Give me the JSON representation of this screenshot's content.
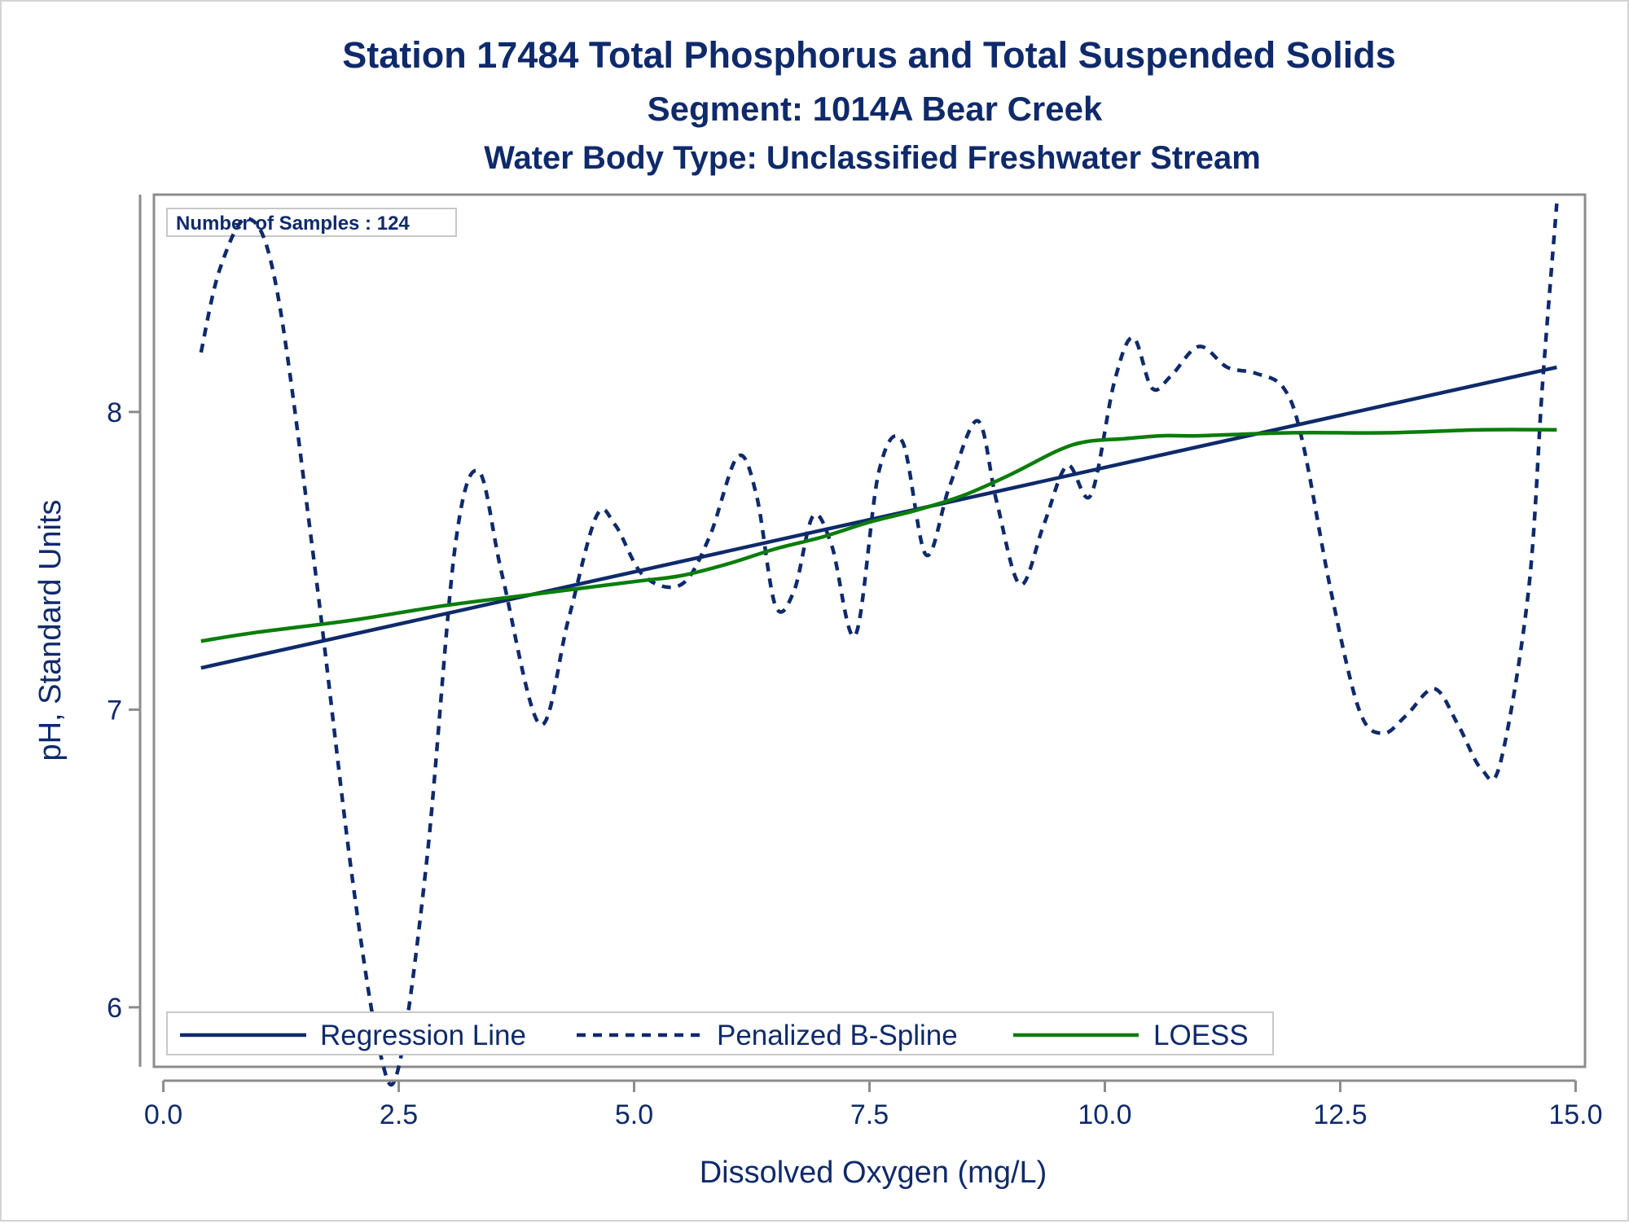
{
  "titles": {
    "line1": "Station 17484  Total Phosphorus and Total Suspended Solids",
    "line2": "Segment: 1014A  Bear Creek",
    "line3": "Water Body Type: Unclassified Freshwater Stream"
  },
  "inset": {
    "label": "Number of Samples : 124"
  },
  "colors": {
    "navy": "#0f2a6b",
    "green": "#0a7d0a",
    "frame": "#8c8c8c"
  },
  "chart_data": {
    "type": "line",
    "xlabel": "Dissolved Oxygen (mg/L)",
    "ylabel": "pH, Standard Units",
    "xlim": [
      -0.1,
      15.1
    ],
    "ylim": [
      5.8,
      8.73
    ],
    "xticks": [
      0.0,
      2.5,
      5.0,
      7.5,
      10.0,
      12.5,
      15.0
    ],
    "xtick_labels": [
      "0.0",
      "2.5",
      "5.0",
      "7.5",
      "10.0",
      "12.5",
      "15.0"
    ],
    "yticks": [
      6,
      7,
      8
    ],
    "ytick_labels": [
      "6",
      "7",
      "8"
    ],
    "grid": false,
    "legend_position": "bottom-left-inside",
    "series": [
      {
        "name": "Regression Line",
        "style": "solid",
        "color": "#0f2a6b",
        "x": [
          0.4,
          14.8
        ],
        "y": [
          7.14,
          8.15
        ]
      },
      {
        "name": "Penalized B-Spline",
        "style": "dashed",
        "color": "#0f2a6b",
        "x": [
          0.4,
          0.6,
          0.9,
          1.2,
          1.6,
          2.0,
          2.3,
          2.5,
          2.8,
          3.1,
          3.35,
          3.6,
          4.0,
          4.3,
          4.6,
          4.8,
          5.1,
          5.5,
          5.8,
          6.1,
          6.3,
          6.5,
          6.7,
          6.9,
          7.1,
          7.35,
          7.6,
          7.85,
          8.1,
          8.35,
          8.65,
          8.85,
          9.1,
          9.35,
          9.6,
          9.85,
          10.1,
          10.3,
          10.5,
          10.7,
          11.0,
          11.3,
          11.6,
          11.9,
          12.1,
          12.4,
          12.7,
          12.95,
          13.2,
          13.5,
          13.75,
          14.0,
          14.2,
          14.5,
          14.65,
          14.8
        ],
        "y": [
          8.2,
          8.48,
          8.65,
          8.42,
          7.5,
          6.45,
          5.85,
          5.8,
          6.5,
          7.55,
          7.8,
          7.45,
          6.95,
          7.3,
          7.65,
          7.62,
          7.45,
          7.42,
          7.58,
          7.85,
          7.72,
          7.35,
          7.4,
          7.65,
          7.55,
          7.25,
          7.8,
          7.9,
          7.52,
          7.75,
          7.97,
          7.7,
          7.42,
          7.62,
          7.82,
          7.72,
          8.1,
          8.25,
          8.08,
          8.12,
          8.22,
          8.15,
          8.13,
          8.08,
          7.9,
          7.4,
          7.0,
          6.92,
          6.98,
          7.07,
          6.95,
          6.8,
          6.82,
          7.4,
          8.1,
          8.7
        ]
      },
      {
        "name": "LOESS",
        "style": "solid",
        "color": "#0a7d0a",
        "x": [
          0.4,
          1.0,
          2.0,
          3.0,
          4.0,
          5.0,
          5.5,
          6.0,
          6.5,
          7.0,
          7.5,
          8.0,
          8.5,
          9.0,
          9.5,
          9.8,
          10.2,
          10.6,
          11.0,
          12.0,
          13.0,
          14.0,
          14.8
        ],
        "y": [
          7.23,
          7.26,
          7.3,
          7.35,
          7.39,
          7.43,
          7.45,
          7.49,
          7.54,
          7.58,
          7.63,
          7.67,
          7.72,
          7.79,
          7.87,
          7.9,
          7.91,
          7.92,
          7.92,
          7.93,
          7.93,
          7.94,
          7.94
        ]
      }
    ]
  }
}
